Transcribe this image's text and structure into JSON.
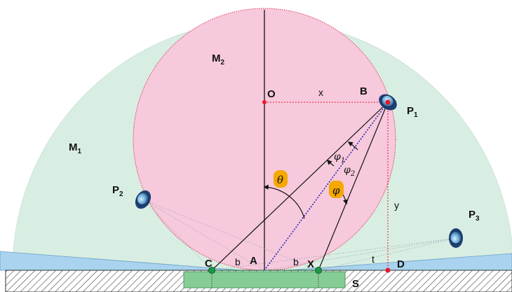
{
  "colors": {
    "outer_region": "#d9eee2",
    "inner_circle": "#f7c9dc",
    "water": "#a9d3ee",
    "substrate_hatch": "#333333",
    "sensor_strip": "#86cc96",
    "point_red": "#e8182a",
    "point_green": "#1a9a48",
    "angle_badge": "#f4a800",
    "mid_ray": "#2b2bb0"
  },
  "labels": {
    "M1": "M",
    "M1_sub": "1",
    "M2": "M",
    "M2_sub": "2",
    "O": "O",
    "x": "x",
    "B": "B",
    "P1": "P",
    "P1_sub": "1",
    "P2": "P",
    "P2_sub": "2",
    "P3": "P",
    "P3_sub": "3",
    "y": "y",
    "t": "t",
    "C": "C",
    "A": "A",
    "X": "X",
    "D": "D",
    "S": "S",
    "b_left": "b",
    "b_right": "b",
    "theta": "θ",
    "phi": "φ",
    "phi1": "φ",
    "phi1_sub": "1",
    "phi2": "φ",
    "phi2_sub": "2"
  },
  "icons": {
    "p1": "observer-pod-icon",
    "p2": "observer-pod-icon",
    "p3": "observer-pod-icon"
  }
}
